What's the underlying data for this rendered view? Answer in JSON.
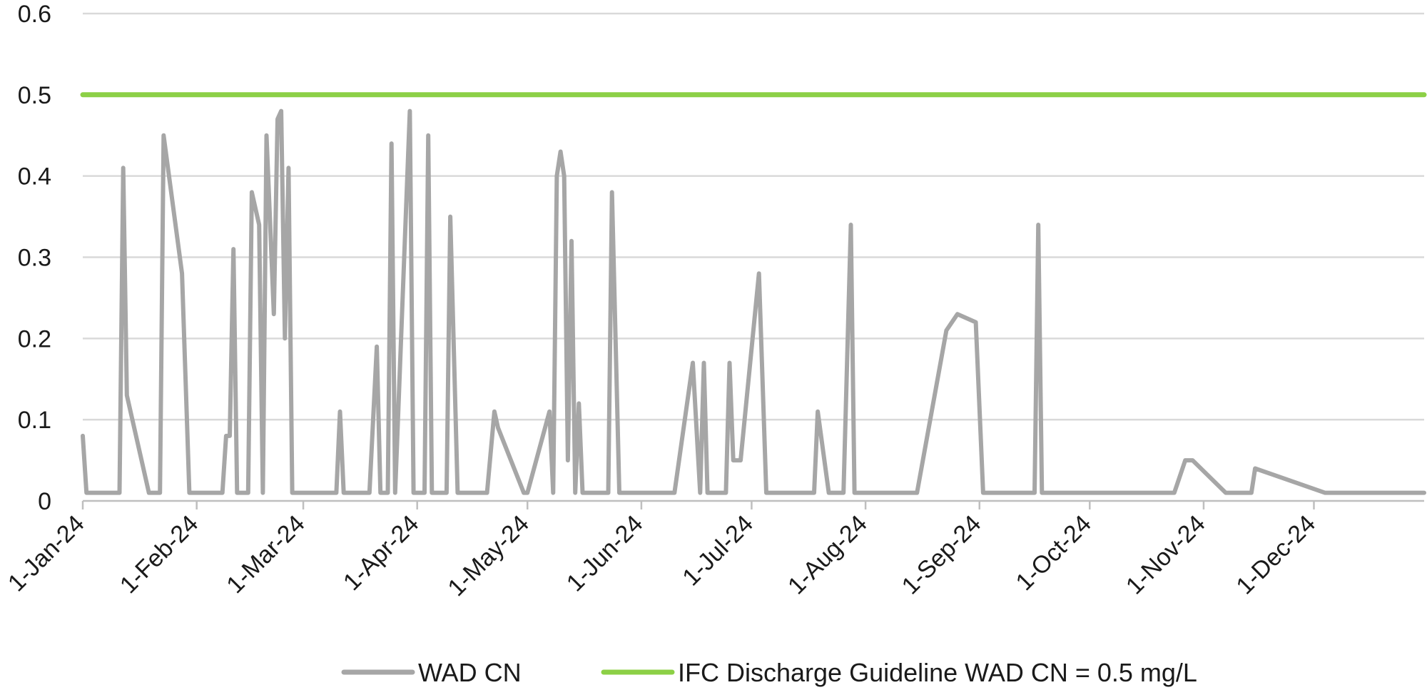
{
  "chart_data": {
    "type": "line",
    "title": "",
    "xlabel": "",
    "ylabel": "",
    "ylim": [
      0,
      0.6
    ],
    "yticks": [
      "0",
      "0.1",
      "0.2",
      "0.3",
      "0.4",
      "0.5",
      "0.6"
    ],
    "xlim": [
      "2024-01-01",
      "2024-12-31"
    ],
    "xticks": [
      {
        "date": "2024-01-01",
        "label": "1-Jan-24"
      },
      {
        "date": "2024-02-01",
        "label": "1-Feb-24"
      },
      {
        "date": "2024-03-01",
        "label": "1-Mar-24"
      },
      {
        "date": "2024-04-01",
        "label": "1-Apr-24"
      },
      {
        "date": "2024-05-01",
        "label": "1-May-24"
      },
      {
        "date": "2024-06-01",
        "label": "1-Jun-24"
      },
      {
        "date": "2024-07-01",
        "label": "1-Jul-24"
      },
      {
        "date": "2024-08-01",
        "label": "1-Aug-24"
      },
      {
        "date": "2024-09-01",
        "label": "1-Sep-24"
      },
      {
        "date": "2024-10-01",
        "label": "1-Oct-24"
      },
      {
        "date": "2024-11-01",
        "label": "1-Nov-24"
      },
      {
        "date": "2024-12-01",
        "label": "1-Dec-24"
      }
    ],
    "grid": true,
    "legend_position": "bottom",
    "series": [
      {
        "name": "WAD CN",
        "color": "#a6a6a6",
        "points": [
          [
            "2024-01-01",
            0.08
          ],
          [
            "2024-01-02",
            0.01
          ],
          [
            "2024-01-11",
            0.01
          ],
          [
            "2024-01-12",
            0.41
          ],
          [
            "2024-01-13",
            0.13
          ],
          [
            "2024-01-19",
            0.01
          ],
          [
            "2024-01-22",
            0.01
          ],
          [
            "2024-01-23",
            0.45
          ],
          [
            "2024-01-28",
            0.28
          ],
          [
            "2024-01-30",
            0.01
          ],
          [
            "2024-02-08",
            0.01
          ],
          [
            "2024-02-09",
            0.08
          ],
          [
            "2024-02-10",
            0.08
          ],
          [
            "2024-02-11",
            0.31
          ],
          [
            "2024-02-12",
            0.01
          ],
          [
            "2024-02-15",
            0.01
          ],
          [
            "2024-02-16",
            0.38
          ],
          [
            "2024-02-18",
            0.34
          ],
          [
            "2024-02-19",
            0.01
          ],
          [
            "2024-02-20",
            0.45
          ],
          [
            "2024-02-22",
            0.23
          ],
          [
            "2024-02-23",
            0.47
          ],
          [
            "2024-02-24",
            0.48
          ],
          [
            "2024-02-25",
            0.2
          ],
          [
            "2024-02-26",
            0.41
          ],
          [
            "2024-02-27",
            0.01
          ],
          [
            "2024-03-10",
            0.01
          ],
          [
            "2024-03-11",
            0.11
          ],
          [
            "2024-03-12",
            0.01
          ],
          [
            "2024-03-19",
            0.01
          ],
          [
            "2024-03-21",
            0.19
          ],
          [
            "2024-03-22",
            0.01
          ],
          [
            "2024-03-24",
            0.01
          ],
          [
            "2024-03-25",
            0.44
          ],
          [
            "2024-03-26",
            0.01
          ],
          [
            "2024-03-30",
            0.48
          ],
          [
            "2024-03-31",
            0.01
          ],
          [
            "2024-04-03",
            0.01
          ],
          [
            "2024-04-04",
            0.45
          ],
          [
            "2024-04-05",
            0.01
          ],
          [
            "2024-04-09",
            0.01
          ],
          [
            "2024-04-10",
            0.35
          ],
          [
            "2024-04-12",
            0.01
          ],
          [
            "2024-04-20",
            0.01
          ],
          [
            "2024-04-22",
            0.11
          ],
          [
            "2024-04-23",
            0.09
          ],
          [
            "2024-04-30",
            0.01
          ],
          [
            "2024-05-01",
            0.01
          ],
          [
            "2024-05-07",
            0.11
          ],
          [
            "2024-05-08",
            0.01
          ],
          [
            "2024-05-09",
            0.4
          ],
          [
            "2024-05-10",
            0.43
          ],
          [
            "2024-05-11",
            0.4
          ],
          [
            "2024-05-12",
            0.05
          ],
          [
            "2024-05-13",
            0.32
          ],
          [
            "2024-05-14",
            0.01
          ],
          [
            "2024-05-15",
            0.12
          ],
          [
            "2024-05-16",
            0.01
          ],
          [
            "2024-05-23",
            0.01
          ],
          [
            "2024-05-24",
            0.38
          ],
          [
            "2024-05-26",
            0.01
          ],
          [
            "2024-06-10",
            0.01
          ],
          [
            "2024-06-15",
            0.17
          ],
          [
            "2024-06-17",
            0.01
          ],
          [
            "2024-06-18",
            0.17
          ],
          [
            "2024-06-19",
            0.01
          ],
          [
            "2024-06-24",
            0.01
          ],
          [
            "2024-06-25",
            0.17
          ],
          [
            "2024-06-26",
            0.05
          ],
          [
            "2024-06-28",
            0.05
          ],
          [
            "2024-07-03",
            0.28
          ],
          [
            "2024-07-05",
            0.01
          ],
          [
            "2024-07-18",
            0.01
          ],
          [
            "2024-07-19",
            0.11
          ],
          [
            "2024-07-22",
            0.01
          ],
          [
            "2024-07-26",
            0.01
          ],
          [
            "2024-07-28",
            0.34
          ],
          [
            "2024-07-29",
            0.01
          ],
          [
            "2024-08-15",
            0.01
          ],
          [
            "2024-08-23",
            0.21
          ],
          [
            "2024-08-26",
            0.23
          ],
          [
            "2024-08-31",
            0.22
          ],
          [
            "2024-09-02",
            0.01
          ],
          [
            "2024-09-16",
            0.01
          ],
          [
            "2024-09-17",
            0.34
          ],
          [
            "2024-09-18",
            0.01
          ],
          [
            "2024-10-24",
            0.01
          ],
          [
            "2024-10-27",
            0.05
          ],
          [
            "2024-10-29",
            0.05
          ],
          [
            "2024-11-07",
            0.01
          ],
          [
            "2024-11-14",
            0.01
          ],
          [
            "2024-11-15",
            0.04
          ],
          [
            "2024-12-04",
            0.01
          ],
          [
            "2024-12-31",
            0.01
          ]
        ]
      },
      {
        "name": "IFC Discharge Guideline WAD CN = 0.5 mg/L",
        "color": "#8cd046",
        "points": [
          [
            "2024-01-01",
            0.5
          ],
          [
            "2024-12-31",
            0.5
          ]
        ]
      }
    ]
  }
}
